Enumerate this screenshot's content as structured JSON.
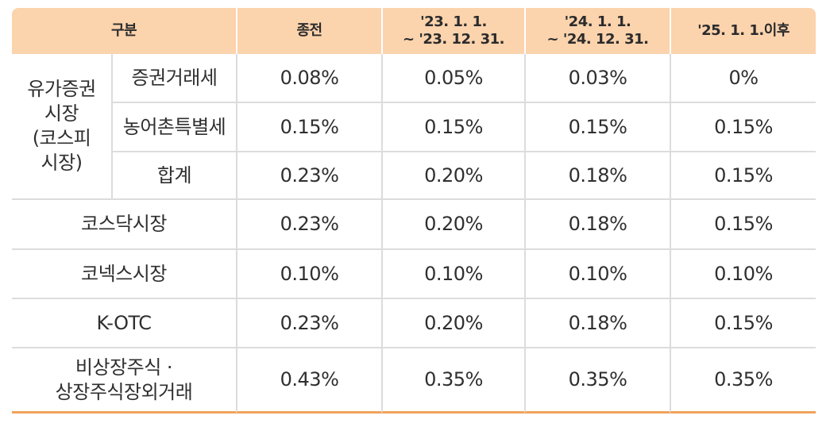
{
  "table": {
    "header": [
      [
        "구분"
      ],
      [
        "종전"
      ],
      [
        "'23. 1. 1.",
        "~ '23. 12. 31."
      ],
      [
        "'24. 1. 1.",
        "~ '24. 12. 31."
      ],
      [
        "'25. 1. 1.이후"
      ]
    ],
    "group": {
      "label": [
        "유가증권",
        "시장",
        "(코스피",
        "시장)"
      ],
      "rows": [
        {
          "label": [
            "증권거래세"
          ],
          "values": [
            "0.08%",
            "0.05%",
            "0.03%",
            "0%"
          ]
        },
        {
          "label": [
            "농어촌특별세"
          ],
          "values": [
            "0.15%",
            "0.15%",
            "0.15%",
            "0.15%"
          ]
        },
        {
          "label": [
            "합계"
          ],
          "values": [
            "0.23%",
            "0.20%",
            "0.18%",
            "0.15%"
          ]
        }
      ]
    },
    "rows": [
      {
        "label": [
          "코스닥시장"
        ],
        "values": [
          "0.23%",
          "0.20%",
          "0.18%",
          "0.15%"
        ]
      },
      {
        "label": [
          "코넥스시장"
        ],
        "values": [
          "0.10%",
          "0.10%",
          "0.10%",
          "0.10%"
        ]
      },
      {
        "label": [
          "K-OTC"
        ],
        "values": [
          "0.23%",
          "0.20%",
          "0.18%",
          "0.15%"
        ]
      },
      {
        "label": [
          "비상장주식 ·",
          "상장주식장외거래"
        ],
        "values": [
          "0.43%",
          "0.35%",
          "0.35%",
          "0.35%"
        ]
      }
    ]
  }
}
